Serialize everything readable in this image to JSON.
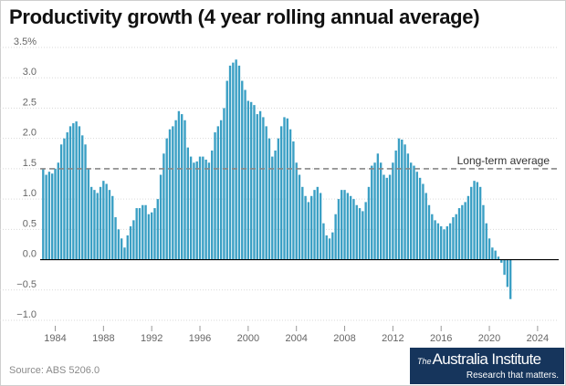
{
  "title": "Productivity growth (4 year rolling annual average)",
  "source": "Source: ABS 5206.0",
  "logo": {
    "the": "The",
    "name": "Australia Institute",
    "tagline": "Research that matters."
  },
  "colors": {
    "bar": "#3a9fc4",
    "average_line": "#888888",
    "grid": "#d9d9d9",
    "zero_line": "#000000",
    "logo_bg": "#16355c"
  },
  "chart_data": {
    "type": "bar",
    "title": "Productivity growth (4 year rolling annual average)",
    "xlabel": "",
    "ylabel": "",
    "ylim": [
      -1.0,
      3.5
    ],
    "xlim": [
      1982.75,
      2025.75
    ],
    "x_ticks": [
      "1984",
      "1988",
      "1992",
      "1996",
      "2000",
      "2004",
      "2008",
      "2012",
      "2016",
      "2020",
      "2024"
    ],
    "y_ticks": [
      "3.5%",
      "3.0",
      "2.5",
      "2.0",
      "1.5",
      "1.0",
      "0.5",
      "0.0",
      "−0.5",
      "−1.0"
    ],
    "grid": true,
    "annotation": {
      "label": "Long-term average",
      "value": 1.5
    },
    "series": [
      {
        "start": "1983 Q1",
        "frequency": "quarterly",
        "values": [
          1.5,
          1.4,
          1.45,
          1.42,
          1.5,
          1.6,
          1.9,
          2.0,
          2.1,
          2.2,
          2.25,
          2.28,
          2.2,
          2.05,
          1.9,
          1.5,
          1.2,
          1.15,
          1.1,
          1.2,
          1.3,
          1.25,
          1.15,
          1.05,
          0.7,
          0.5,
          0.35,
          0.2,
          0.4,
          0.55,
          0.65,
          0.85,
          0.85,
          0.9,
          0.9,
          0.75,
          0.78,
          0.85,
          1.0,
          1.4,
          1.75,
          2.0,
          2.15,
          2.2,
          2.3,
          2.45,
          2.4,
          2.3,
          1.85,
          1.7,
          1.6,
          1.62,
          1.7,
          1.7,
          1.65,
          1.6,
          1.8,
          2.1,
          2.2,
          2.3,
          2.5,
          2.95,
          3.2,
          3.25,
          3.3,
          3.2,
          2.95,
          2.8,
          2.62,
          2.6,
          2.55,
          2.4,
          2.45,
          2.35,
          2.2,
          2.0,
          1.7,
          1.8,
          2.0,
          2.2,
          2.35,
          2.33,
          2.15,
          1.95,
          1.6,
          1.4,
          1.2,
          1.05,
          0.95,
          1.05,
          1.15,
          1.2,
          1.1,
          0.6,
          0.4,
          0.35,
          0.45,
          0.75,
          1.0,
          1.15,
          1.15,
          1.1,
          1.05,
          1.0,
          0.9,
          0.85,
          0.8,
          0.95,
          1.2,
          1.55,
          1.6,
          1.75,
          1.6,
          1.4,
          1.35,
          1.4,
          1.6,
          1.8,
          2.0,
          1.98,
          1.9,
          1.75,
          1.6,
          1.55,
          1.45,
          1.35,
          1.25,
          1.1,
          0.9,
          0.75,
          0.65,
          0.6,
          0.55,
          0.5,
          0.55,
          0.6,
          0.7,
          0.75,
          0.85,
          0.9,
          0.95,
          1.05,
          1.2,
          1.3,
          1.28,
          1.2,
          0.9,
          0.6,
          0.35,
          0.2,
          0.15,
          0.05,
          -0.05,
          -0.25,
          -0.45,
          -0.65
        ]
      }
    ]
  }
}
